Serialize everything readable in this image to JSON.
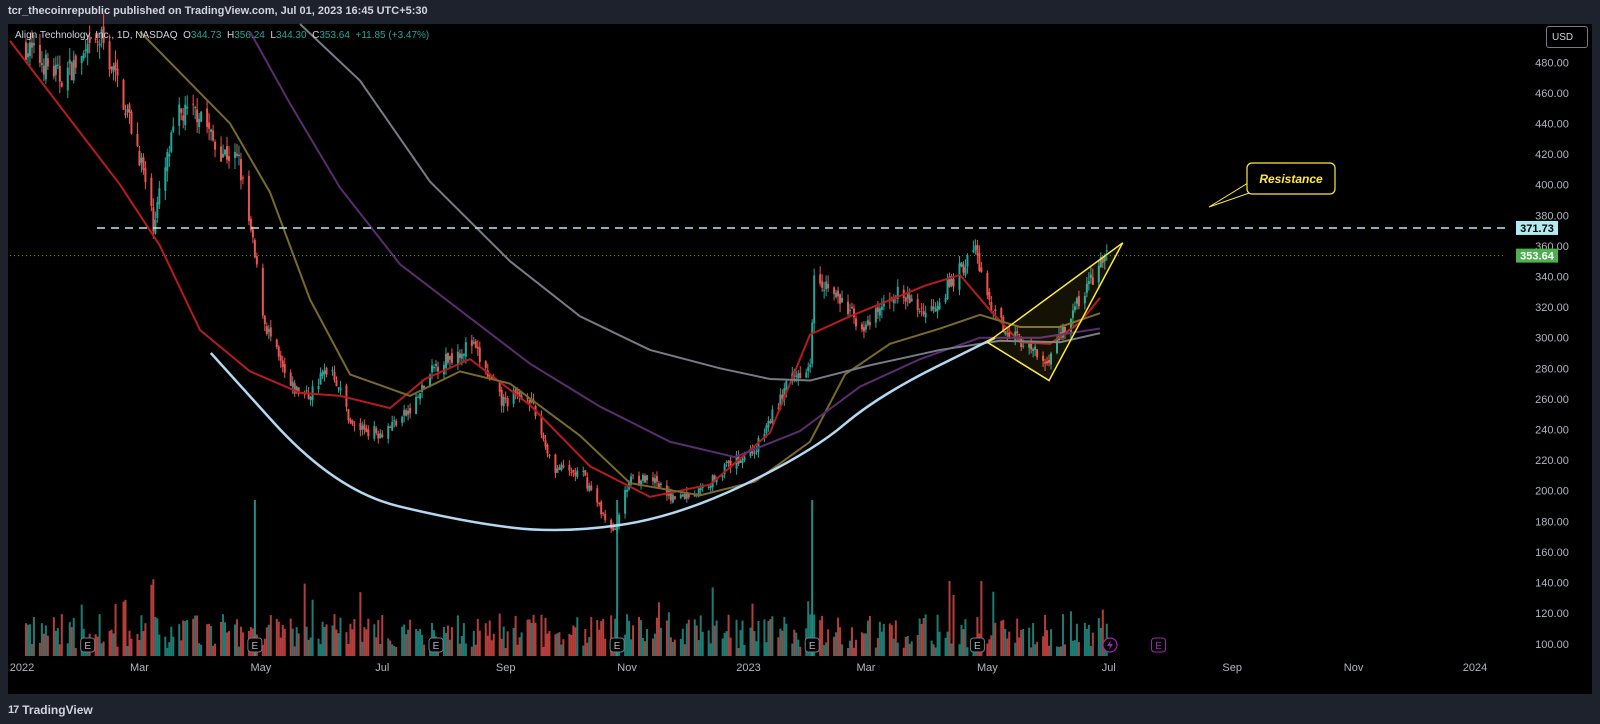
{
  "header": {
    "published_by": "tcr_thecoinrepublic published on TradingView.com, Jul 01, 2023 16:45 UTC+5:30"
  },
  "legend": {
    "symbol": "Align Technology, Inc., 1D, NASDAQ",
    "open_label": "O",
    "open": "344.73",
    "high_label": "H",
    "high": "356.24",
    "low_label": "L",
    "low": "344.30",
    "close_label": "C",
    "close": "353.64",
    "change": "+11.85 (+3.47%)"
  },
  "currency": "USD",
  "footer": {
    "brand": "TradingView",
    "logo_mark": "17"
  },
  "colors": {
    "up": "#26a69a",
    "down": "#ef5350",
    "background": "#000000",
    "ma20": "#b71c1c",
    "ma50": "#7a6a2a",
    "ma100": "#5b2c6f",
    "ma200": "#787b86",
    "cup": "#b3d9f2",
    "pattern": "#ffeb3b",
    "resistance": "#b2ebf2",
    "price_line": "#4caf50"
  },
  "chart_data": {
    "type": "candlestick",
    "symbol": "Align Technology, Inc.",
    "interval": "1D",
    "exchange": "NASDAQ",
    "y_axis": {
      "side": "right",
      "ticks": [
        100,
        120,
        140,
        160,
        180,
        200,
        220,
        240,
        260,
        280,
        300,
        320,
        340,
        360,
        380,
        400,
        420,
        440,
        460,
        480
      ],
      "ylim": [
        92,
        505
      ]
    },
    "x_axis": {
      "labels": [
        "2022",
        "Mar",
        "May",
        "Jul",
        "Sep",
        "Nov",
        "2023",
        "Mar",
        "May",
        "Jul",
        "Sep",
        "Nov",
        "2024"
      ]
    },
    "price_path": [
      {
        "date": "2022-01-03",
        "close": 490
      },
      {
        "date": "2022-01-20",
        "close": 470
      },
      {
        "date": "2022-02-03",
        "close": 485
      },
      {
        "date": "2022-02-10",
        "close": 495
      },
      {
        "date": "2022-02-20",
        "close": 460
      },
      {
        "date": "2022-03-01",
        "close": 420
      },
      {
        "date": "2022-03-08",
        "close": 375
      },
      {
        "date": "2022-03-20",
        "close": 445
      },
      {
        "date": "2022-04-01",
        "close": 448
      },
      {
        "date": "2022-04-08",
        "close": 425
      },
      {
        "date": "2022-04-20",
        "close": 415
      },
      {
        "date": "2022-04-27",
        "close": 360
      },
      {
        "date": "2022-05-03",
        "close": 310
      },
      {
        "date": "2022-05-15",
        "close": 268
      },
      {
        "date": "2022-05-25",
        "close": 262
      },
      {
        "date": "2022-06-05",
        "close": 283
      },
      {
        "date": "2022-06-16",
        "close": 242
      },
      {
        "date": "2022-06-30",
        "close": 238
      },
      {
        "date": "2022-07-15",
        "close": 252
      },
      {
        "date": "2022-07-28",
        "close": 282
      },
      {
        "date": "2022-08-15",
        "close": 296
      },
      {
        "date": "2022-08-30",
        "close": 258
      },
      {
        "date": "2022-09-12",
        "close": 264
      },
      {
        "date": "2022-09-25",
        "close": 215
      },
      {
        "date": "2022-10-10",
        "close": 210
      },
      {
        "date": "2022-10-25",
        "close": 172
      },
      {
        "date": "2022-11-03",
        "close": 210
      },
      {
        "date": "2022-11-15",
        "close": 205
      },
      {
        "date": "2022-11-25",
        "close": 195
      },
      {
        "date": "2022-12-08",
        "close": 200
      },
      {
        "date": "2022-12-20",
        "close": 215
      },
      {
        "date": "2023-01-05",
        "close": 228
      },
      {
        "date": "2023-01-20",
        "close": 268
      },
      {
        "date": "2023-02-01",
        "close": 285
      },
      {
        "date": "2023-02-03",
        "close": 345
      },
      {
        "date": "2023-02-15",
        "close": 325
      },
      {
        "date": "2023-03-01",
        "close": 305
      },
      {
        "date": "2023-03-15",
        "close": 330
      },
      {
        "date": "2023-04-01",
        "close": 316
      },
      {
        "date": "2023-04-15",
        "close": 340
      },
      {
        "date": "2023-04-25",
        "close": 358
      },
      {
        "date": "2023-05-03",
        "close": 315
      },
      {
        "date": "2023-05-15",
        "close": 302
      },
      {
        "date": "2023-05-30",
        "close": 283
      },
      {
        "date": "2023-06-10",
        "close": 310
      },
      {
        "date": "2023-06-20",
        "close": 333
      },
      {
        "date": "2023-06-30",
        "close": 353.64
      }
    ],
    "moving_averages": [
      {
        "name": "",
        "color": "#b71c1c",
        "points": [
          [
            0,
            494
          ],
          [
            110,
            400
          ],
          [
            150,
            360
          ],
          [
            190,
            305
          ],
          [
            240,
            278
          ],
          [
            290,
            264
          ],
          [
            330,
            262
          ],
          [
            380,
            254
          ],
          [
            415,
            273
          ],
          [
            460,
            286
          ],
          [
            520,
            256
          ],
          [
            580,
            216
          ],
          [
            640,
            196
          ],
          [
            700,
            204
          ],
          [
            760,
            238
          ],
          [
            800,
            302
          ],
          [
            840,
            314
          ],
          [
            870,
            322
          ],
          [
            915,
            334
          ],
          [
            950,
            341
          ],
          [
            980,
            318
          ],
          [
            1010,
            297
          ],
          [
            1040,
            296
          ],
          [
            1070,
            310
          ],
          [
            1090,
            326
          ]
        ]
      },
      {
        "name": "",
        "color": "#7a6a2a",
        "points": [
          [
            130,
            500
          ],
          [
            220,
            440
          ],
          [
            260,
            395
          ],
          [
            300,
            325
          ],
          [
            340,
            276
          ],
          [
            400,
            262
          ],
          [
            450,
            278
          ],
          [
            500,
            270
          ],
          [
            570,
            236
          ],
          [
            620,
            205
          ],
          [
            690,
            197
          ],
          [
            745,
            206
          ],
          [
            800,
            232
          ],
          [
            835,
            276
          ],
          [
            880,
            296
          ],
          [
            930,
            306
          ],
          [
            970,
            315
          ],
          [
            1010,
            307
          ],
          [
            1050,
            307
          ],
          [
            1090,
            316
          ]
        ]
      },
      {
        "name": "",
        "color": "#5b2c6f",
        "points": [
          [
            240,
            500
          ],
          [
            280,
            453
          ],
          [
            330,
            398
          ],
          [
            390,
            348
          ],
          [
            450,
            318
          ],
          [
            520,
            283
          ],
          [
            590,
            255
          ],
          [
            660,
            232
          ],
          [
            725,
            222
          ],
          [
            790,
            239
          ],
          [
            850,
            268
          ],
          [
            910,
            286
          ],
          [
            970,
            300
          ],
          [
            1030,
            300
          ],
          [
            1090,
            306
          ]
        ]
      },
      {
        "name": "",
        "color": "#787b86",
        "points": [
          [
            290,
            505
          ],
          [
            350,
            468
          ],
          [
            420,
            402
          ],
          [
            500,
            350
          ],
          [
            570,
            314
          ],
          [
            640,
            292
          ],
          [
            710,
            280
          ],
          [
            760,
            273
          ],
          [
            800,
            272
          ],
          [
            860,
            282
          ],
          [
            930,
            292
          ],
          [
            990,
            298
          ],
          [
            1050,
            297
          ],
          [
            1090,
            303
          ]
        ]
      }
    ],
    "volume": {
      "description": "volume histogram along the bottom of the price pane",
      "max_spike_dates": [
        "2022-04-28",
        "2022-10-27",
        "2023-02-02"
      ]
    },
    "earnings_markers": [
      "2022-02-03",
      "2022-04-28",
      "2022-07-28",
      "2022-10-27",
      "2023-02-02",
      "2023-04-26",
      "2023-07-26"
    ],
    "annotations": {
      "resistance": {
        "price": 371.73,
        "label": "Resistance",
        "style": "dashed"
      },
      "current_price_line": {
        "price": 353.64,
        "style": "dotted"
      },
      "cup_curve": "rounded cup support arc from May 2022 through Apr 2023",
      "wedge": "rising wedge / triangle pattern May–Jul 2023"
    },
    "price_labels": [
      "371.73",
      "353.64"
    ],
    "grid": false,
    "legend_position": "top-left"
  }
}
